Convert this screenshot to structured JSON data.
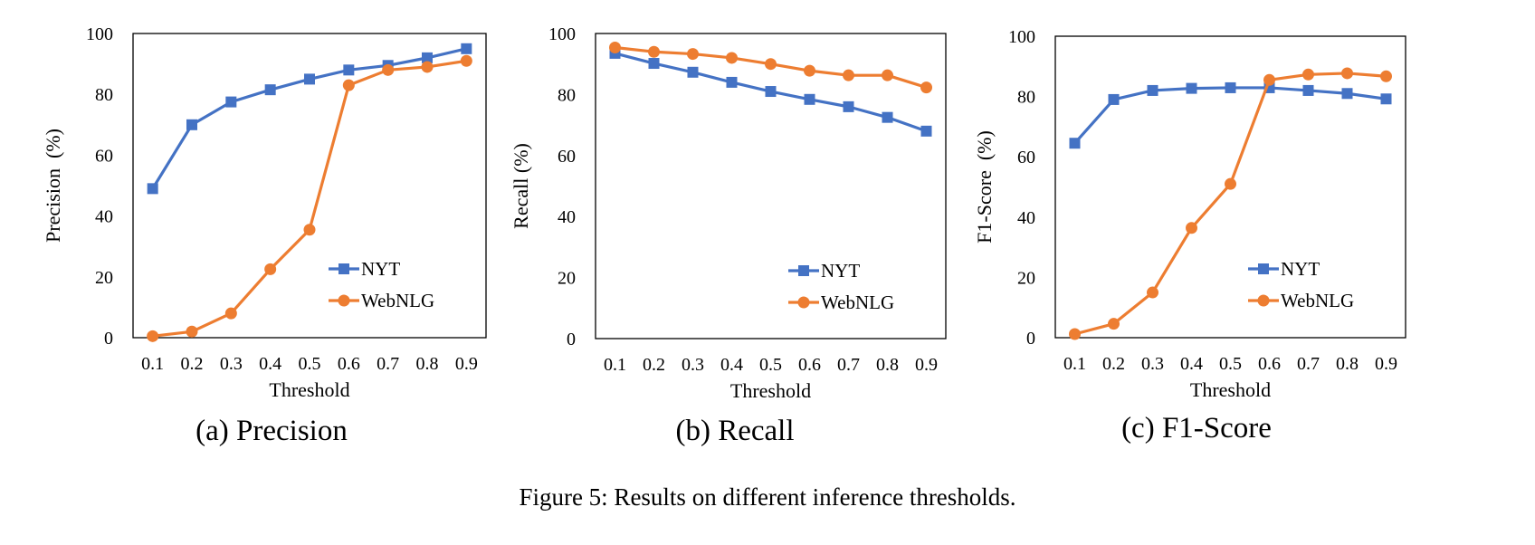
{
  "figure": {
    "caption": "Figure 5: Results on different inference thresholds."
  },
  "colors": {
    "NYT": "#4472C4",
    "WebNLG": "#ED7D31"
  },
  "chart_data": [
    {
      "type": "line",
      "subcaption": "(a) Precision",
      "xlabel": "Threshold",
      "ylabel": "Precision  (%)",
      "x": [
        0.1,
        0.2,
        0.3,
        0.4,
        0.5,
        0.6,
        0.7,
        0.8,
        0.9
      ],
      "x_tick_labels": [
        "0.1",
        "0.2",
        "0.3",
        "0.4",
        "0.5",
        "0.6",
        "0.7",
        "0.8",
        "0.9"
      ],
      "ylim": [
        0,
        100
      ],
      "y_ticks": [
        0,
        20,
        40,
        60,
        80,
        100
      ],
      "grid": false,
      "legend_position": "bottom-right",
      "series": [
        {
          "name": "NYT",
          "marker": "square",
          "values": [
            49.0,
            70.0,
            77.5,
            81.5,
            85.0,
            88.0,
            89.5,
            92.0,
            95.0
          ]
        },
        {
          "name": "WebNLG",
          "marker": "circle",
          "values": [
            0.5,
            2.0,
            8.0,
            22.5,
            35.5,
            83.0,
            88.0,
            89.0,
            91.0
          ]
        }
      ]
    },
    {
      "type": "line",
      "subcaption": "(b) Recall",
      "xlabel": "Threshold",
      "ylabel": "Recall (%)",
      "x": [
        0.1,
        0.2,
        0.3,
        0.4,
        0.5,
        0.6,
        0.7,
        0.8,
        0.9
      ],
      "x_tick_labels": [
        "0.1",
        "0.2",
        "0.3",
        "0.4",
        "0.5",
        "0.6",
        "0.7",
        "0.8",
        "0.9"
      ],
      "ylim": [
        0,
        100
      ],
      "y_ticks": [
        0,
        20,
        40,
        60,
        80,
        100
      ],
      "grid": false,
      "legend_position": "bottom-right",
      "series": [
        {
          "name": "NYT",
          "marker": "square",
          "values": [
            93.5,
            90.2,
            87.3,
            84.0,
            81.0,
            78.4,
            76.0,
            72.5,
            68.0
          ]
        },
        {
          "name": "WebNLG",
          "marker": "circle",
          "values": [
            95.4,
            94.0,
            93.3,
            92.0,
            90.0,
            87.8,
            86.3,
            86.3,
            82.3
          ]
        }
      ]
    },
    {
      "type": "line",
      "subcaption": "(c) F1-Score",
      "xlabel": "Threshold",
      "ylabel": "F1-Score  (%)",
      "x": [
        0.1,
        0.2,
        0.3,
        0.4,
        0.5,
        0.6,
        0.7,
        0.8,
        0.9
      ],
      "x_tick_labels": [
        "0.1",
        "0.2",
        "0.3",
        "0.4",
        "0.5",
        "0.6",
        "0.7",
        "0.8",
        "0.9"
      ],
      "ylim": [
        0,
        100
      ],
      "y_ticks": [
        0,
        20,
        40,
        60,
        80,
        100
      ],
      "grid": false,
      "legend_position": "bottom-right",
      "series": [
        {
          "name": "NYT",
          "marker": "square",
          "values": [
            64.5,
            79.0,
            82.0,
            82.7,
            82.9,
            82.9,
            82.0,
            81.0,
            79.2
          ]
        },
        {
          "name": "WebNLG",
          "marker": "circle",
          "values": [
            1.2,
            4.6,
            15.0,
            36.4,
            51.0,
            85.5,
            87.3,
            87.7,
            86.7
          ]
        }
      ]
    }
  ]
}
